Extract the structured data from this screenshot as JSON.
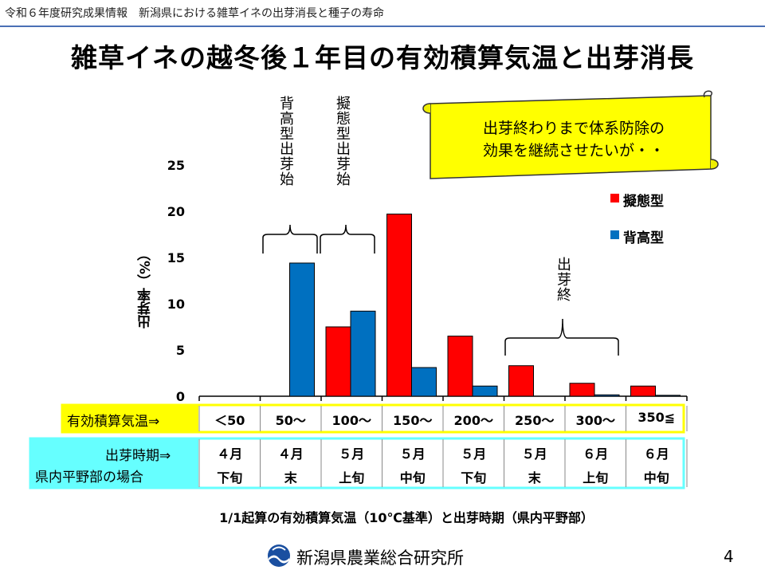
{
  "header": {
    "text": "令和６年度研究成果情報　新潟県における雑草イネの出芽消長と種子の寿命"
  },
  "title": "雑草イネの越冬後１年目の有効積算気温と出芽消長",
  "annotations": {
    "haikou_start": "背高型出芽始",
    "gitai_start": "擬態型出芽始",
    "emergence_end": "出芽終",
    "callout_line1": "出芽終わりまで体系防除の",
    "callout_line2": "効果を継続させたいが・・"
  },
  "chart_data": {
    "type": "bar",
    "title": "",
    "ylabel": "出芽率（%）",
    "xlabel": "",
    "ylim": [
      0,
      25
    ],
    "yticks": [
      0,
      5,
      10,
      15,
      20,
      25
    ],
    "categories": [
      "＜50",
      "50～",
      "100～",
      "150～",
      "200～",
      "250～",
      "300～",
      "350≦"
    ],
    "series": [
      {
        "name": "擬態型",
        "color": "#ff0000",
        "values": [
          0,
          0,
          7.5,
          19.7,
          6.5,
          3.3,
          1.4,
          1.1
        ]
      },
      {
        "name": "背高型",
        "color": "#0070c0",
        "values": [
          0,
          14.4,
          9.2,
          3.1,
          1.1,
          0,
          0.15,
          0.1
        ]
      }
    ],
    "legend_position": "top-right"
  },
  "table": {
    "row1_label": "有効積算気温⇒",
    "row2_label_line1": "出芽時期⇒",
    "row2_label_line2": "県内平野部の場合",
    "periods": [
      {
        "top": "４月",
        "bottom": "下旬"
      },
      {
        "top": "４月",
        "bottom": "末"
      },
      {
        "top": "５月",
        "bottom": "上旬"
      },
      {
        "top": "５月",
        "bottom": "中旬"
      },
      {
        "top": "５月",
        "bottom": "下旬"
      },
      {
        "top": "５月",
        "bottom": "末"
      },
      {
        "top": "６月",
        "bottom": "上旬"
      },
      {
        "top": "６月",
        "bottom": "中旬"
      }
    ]
  },
  "caption": "1/1起算の有効積算気温（10℃基準）と出芽時期（県内平野部）",
  "footer": {
    "organization": "新潟県農業総合研究所",
    "page": "4"
  },
  "colors": {
    "gitai": "#ff0000",
    "haikou": "#0070c0",
    "yellow": "#ffff00",
    "cyan": "#66ffff",
    "header_line": "#4a6fb5"
  }
}
